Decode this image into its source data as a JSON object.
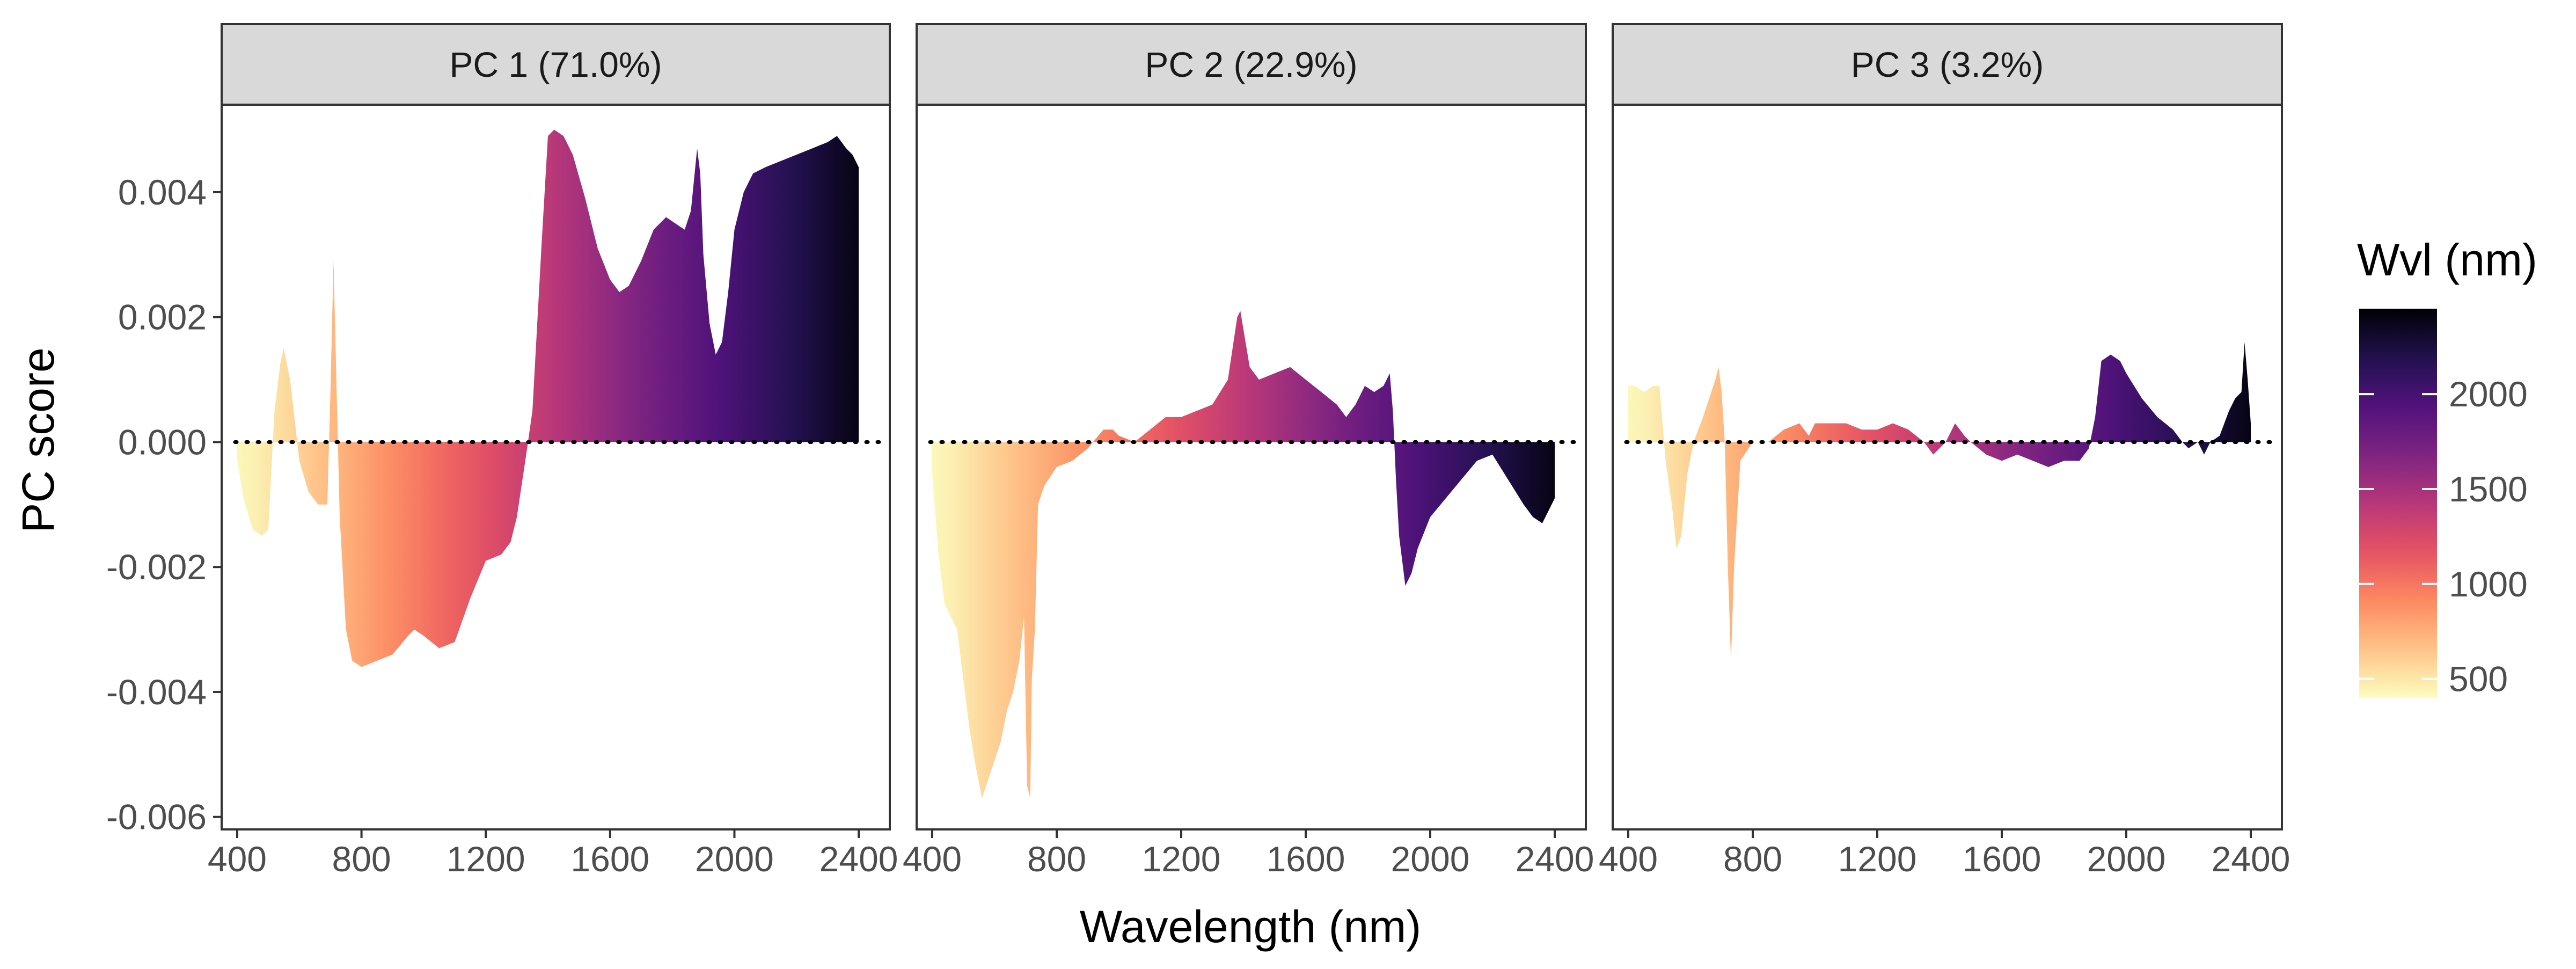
{
  "chart_data": {
    "type": "area",
    "facet_titles": [
      "PC 1 (71.0%)",
      "PC 2 (22.9%)",
      "PC 3 (3.2%)"
    ],
    "xlabel": "Wavelength (nm)",
    "ylabel": "PC score",
    "xlim": [
      350,
      2500
    ],
    "ylim": [
      -0.0062,
      0.0054
    ],
    "x_ticks": [
      400,
      800,
      1200,
      1600,
      2000,
      2400
    ],
    "x_tick_labels": [
      "400",
      "800",
      "1200",
      "1600",
      "2000",
      "2400"
    ],
    "y_ticks": [
      -0.006,
      -0.004,
      -0.002,
      0,
      0.002,
      0.004
    ],
    "y_tick_labels": [
      "-0.006",
      "-0.004",
      "-0.002",
      "0.000",
      "0.002",
      "0.004"
    ],
    "reference_line": {
      "y": 0,
      "style": "dotted"
    },
    "legend": {
      "title": "Wvl (nm)",
      "position": "right",
      "range": [
        400,
        2450
      ],
      "ticks": [
        500,
        1000,
        1500,
        2000
      ],
      "tick_labels": [
        "500",
        "1000",
        "1500",
        "2000"
      ],
      "palette": "magma (reversed)"
    },
    "series": [
      {
        "name": "PC 1 (71.0%)",
        "points": [
          [
            400,
            -0.0003
          ],
          [
            420,
            -0.0009
          ],
          [
            450,
            -0.0014
          ],
          [
            480,
            -0.0015
          ],
          [
            500,
            -0.0014
          ],
          [
            520,
            0.0005
          ],
          [
            540,
            0.0013
          ],
          [
            550,
            0.0015
          ],
          [
            570,
            0.001
          ],
          [
            600,
            -0.0003
          ],
          [
            630,
            -0.0008
          ],
          [
            660,
            -0.001
          ],
          [
            690,
            -0.001
          ],
          [
            700,
            0.0008
          ],
          [
            710,
            0.0029
          ],
          [
            720,
            0.0008
          ],
          [
            730,
            -0.0012
          ],
          [
            750,
            -0.003
          ],
          [
            770,
            -0.0035
          ],
          [
            800,
            -0.0036
          ],
          [
            850,
            -0.0035
          ],
          [
            900,
            -0.0034
          ],
          [
            950,
            -0.0031
          ],
          [
            970,
            -0.003
          ],
          [
            1000,
            -0.0031
          ],
          [
            1050,
            -0.0033
          ],
          [
            1100,
            -0.0032
          ],
          [
            1150,
            -0.0025
          ],
          [
            1200,
            -0.0019
          ],
          [
            1250,
            -0.0018
          ],
          [
            1280,
            -0.0016
          ],
          [
            1300,
            -0.0012
          ],
          [
            1330,
            -0.0002
          ],
          [
            1350,
            0.0005
          ],
          [
            1380,
            0.0032
          ],
          [
            1400,
            0.0049
          ],
          [
            1420,
            0.005
          ],
          [
            1450,
            0.0049
          ],
          [
            1480,
            0.0046
          ],
          [
            1520,
            0.0039
          ],
          [
            1560,
            0.0031
          ],
          [
            1600,
            0.0026
          ],
          [
            1630,
            0.0024
          ],
          [
            1660,
            0.0025
          ],
          [
            1700,
            0.0029
          ],
          [
            1740,
            0.0034
          ],
          [
            1780,
            0.0036
          ],
          [
            1810,
            0.0035
          ],
          [
            1840,
            0.0034
          ],
          [
            1860,
            0.0037
          ],
          [
            1880,
            0.0047
          ],
          [
            1890,
            0.0043
          ],
          [
            1900,
            0.003
          ],
          [
            1920,
            0.0019
          ],
          [
            1940,
            0.0014
          ],
          [
            1960,
            0.0016
          ],
          [
            1980,
            0.0024
          ],
          [
            2000,
            0.0034
          ],
          [
            2030,
            0.004
          ],
          [
            2060,
            0.0043
          ],
          [
            2100,
            0.0044
          ],
          [
            2150,
            0.0045
          ],
          [
            2200,
            0.0046
          ],
          [
            2250,
            0.0047
          ],
          [
            2300,
            0.0048
          ],
          [
            2330,
            0.0049
          ],
          [
            2360,
            0.0047
          ],
          [
            2380,
            0.0046
          ],
          [
            2400,
            0.0044
          ]
        ]
      },
      {
        "name": "PC 2 (22.9%)",
        "points": [
          [
            400,
            -0.0005
          ],
          [
            420,
            -0.0018
          ],
          [
            440,
            -0.0026
          ],
          [
            460,
            -0.0028
          ],
          [
            480,
            -0.003
          ],
          [
            500,
            -0.0038
          ],
          [
            520,
            -0.0046
          ],
          [
            540,
            -0.0052
          ],
          [
            560,
            -0.0057
          ],
          [
            580,
            -0.0054
          ],
          [
            600,
            -0.0051
          ],
          [
            620,
            -0.0048
          ],
          [
            640,
            -0.0043
          ],
          [
            660,
            -0.004
          ],
          [
            680,
            -0.0035
          ],
          [
            695,
            -0.0028
          ],
          [
            705,
            -0.0055
          ],
          [
            715,
            -0.0057
          ],
          [
            720,
            -0.0038
          ],
          [
            730,
            -0.003
          ],
          [
            740,
            -0.001
          ],
          [
            760,
            -0.0007
          ],
          [
            800,
            -0.0004
          ],
          [
            850,
            -0.0003
          ],
          [
            900,
            -0.0001
          ],
          [
            950,
            0.0002
          ],
          [
            980,
            0.0002
          ],
          [
            1000,
            0.0001
          ],
          [
            1050,
            0.0
          ],
          [
            1100,
            0.0002
          ],
          [
            1150,
            0.0004
          ],
          [
            1200,
            0.0004
          ],
          [
            1250,
            0.0005
          ],
          [
            1300,
            0.0006
          ],
          [
            1350,
            0.001
          ],
          [
            1380,
            0.002
          ],
          [
            1390,
            0.0021
          ],
          [
            1400,
            0.0018
          ],
          [
            1420,
            0.0012
          ],
          [
            1450,
            0.001
          ],
          [
            1500,
            0.0011
          ],
          [
            1550,
            0.0012
          ],
          [
            1600,
            0.001
          ],
          [
            1650,
            0.0008
          ],
          [
            1700,
            0.0006
          ],
          [
            1730,
            0.0004
          ],
          [
            1760,
            0.0006
          ],
          [
            1790,
            0.0009
          ],
          [
            1820,
            0.0008
          ],
          [
            1850,
            0.0009
          ],
          [
            1870,
            0.0011
          ],
          [
            1880,
            0.0005
          ],
          [
            1890,
            -0.0006
          ],
          [
            1900,
            -0.0015
          ],
          [
            1920,
            -0.0023
          ],
          [
            1940,
            -0.0021
          ],
          [
            1960,
            -0.0017
          ],
          [
            2000,
            -0.0012
          ],
          [
            2050,
            -0.0009
          ],
          [
            2100,
            -0.0006
          ],
          [
            2150,
            -0.0003
          ],
          [
            2200,
            -0.0002
          ],
          [
            2250,
            -0.0006
          ],
          [
            2300,
            -0.001
          ],
          [
            2330,
            -0.0012
          ],
          [
            2360,
            -0.0013
          ],
          [
            2380,
            -0.0011
          ],
          [
            2400,
            -0.0009
          ]
        ]
      },
      {
        "name": "PC 3 (3.2%)",
        "points": [
          [
            400,
            0.0009
          ],
          [
            420,
            0.0009
          ],
          [
            450,
            0.0008
          ],
          [
            480,
            0.0009
          ],
          [
            500,
            0.0009
          ],
          [
            520,
            -0.0003
          ],
          [
            540,
            -0.001
          ],
          [
            555,
            -0.0017
          ],
          [
            570,
            -0.0015
          ],
          [
            590,
            -0.0005
          ],
          [
            610,
            0.0
          ],
          [
            640,
            0.0004
          ],
          [
            660,
            0.0007
          ],
          [
            680,
            0.001
          ],
          [
            690,
            0.0012
          ],
          [
            700,
            0.0008
          ],
          [
            710,
            0.0
          ],
          [
            715,
            -0.001
          ],
          [
            720,
            -0.002
          ],
          [
            730,
            -0.0035
          ],
          [
            740,
            -0.002
          ],
          [
            760,
            -0.0003
          ],
          [
            800,
            0.0
          ],
          [
            850,
            0.0
          ],
          [
            900,
            0.0002
          ],
          [
            950,
            0.0003
          ],
          [
            980,
            0.0001
          ],
          [
            1000,
            0.0003
          ],
          [
            1050,
            0.0003
          ],
          [
            1100,
            0.0003
          ],
          [
            1150,
            0.0002
          ],
          [
            1200,
            0.0002
          ],
          [
            1250,
            0.0003
          ],
          [
            1300,
            0.0002
          ],
          [
            1350,
            0.0
          ],
          [
            1380,
            -0.0002
          ],
          [
            1400,
            -0.0001
          ],
          [
            1420,
            0.0
          ],
          [
            1450,
            0.0003
          ],
          [
            1480,
            0.0001
          ],
          [
            1500,
            0.0
          ],
          [
            1550,
            -0.0002
          ],
          [
            1600,
            -0.0003
          ],
          [
            1650,
            -0.0002
          ],
          [
            1700,
            -0.0003
          ],
          [
            1750,
            -0.0004
          ],
          [
            1800,
            -0.0003
          ],
          [
            1850,
            -0.0003
          ],
          [
            1880,
            -0.0001
          ],
          [
            1900,
            0.0004
          ],
          [
            1920,
            0.0013
          ],
          [
            1950,
            0.0014
          ],
          [
            1980,
            0.0013
          ],
          [
            2000,
            0.0011
          ],
          [
            2050,
            0.0007
          ],
          [
            2100,
            0.0004
          ],
          [
            2150,
            0.0002
          ],
          [
            2180,
            0.0
          ],
          [
            2200,
            -0.0001
          ],
          [
            2230,
            0.0
          ],
          [
            2250,
            -0.0002
          ],
          [
            2270,
            0.0
          ],
          [
            2300,
            0.0001
          ],
          [
            2330,
            0.0005
          ],
          [
            2350,
            0.0007
          ],
          [
            2370,
            0.0008
          ],
          [
            2380,
            0.0016
          ],
          [
            2390,
            0.001
          ],
          [
            2400,
            0.0003
          ]
        ]
      }
    ]
  }
}
